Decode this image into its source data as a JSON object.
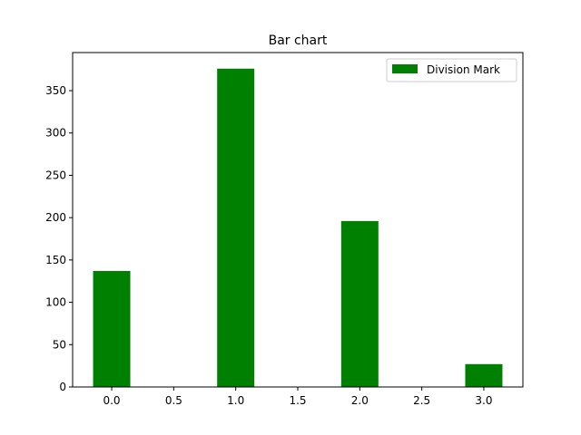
{
  "chart_data": {
    "type": "bar",
    "title": "Bar chart",
    "xlabel": "",
    "ylabel": "",
    "x": [
      0,
      1,
      2,
      3
    ],
    "series": [
      {
        "name": "Division Mark",
        "values": [
          137,
          376,
          196,
          27
        ],
        "color": "#008000"
      }
    ],
    "bar_width": 0.3,
    "xlim": [
      -0.315,
      3.315
    ],
    "ylim": [
      0,
      395
    ],
    "xticks": [
      0.0,
      0.5,
      1.0,
      1.5,
      2.0,
      2.5,
      3.0
    ],
    "xtick_labels": [
      "0.0",
      "0.5",
      "1.0",
      "1.5",
      "2.0",
      "2.5",
      "3.0"
    ],
    "yticks": [
      0,
      50,
      100,
      150,
      200,
      250,
      300,
      350
    ],
    "ytick_labels": [
      "0",
      "50",
      "100",
      "150",
      "200",
      "250",
      "300",
      "350"
    ],
    "grid": false,
    "legend_position": "top-right"
  }
}
